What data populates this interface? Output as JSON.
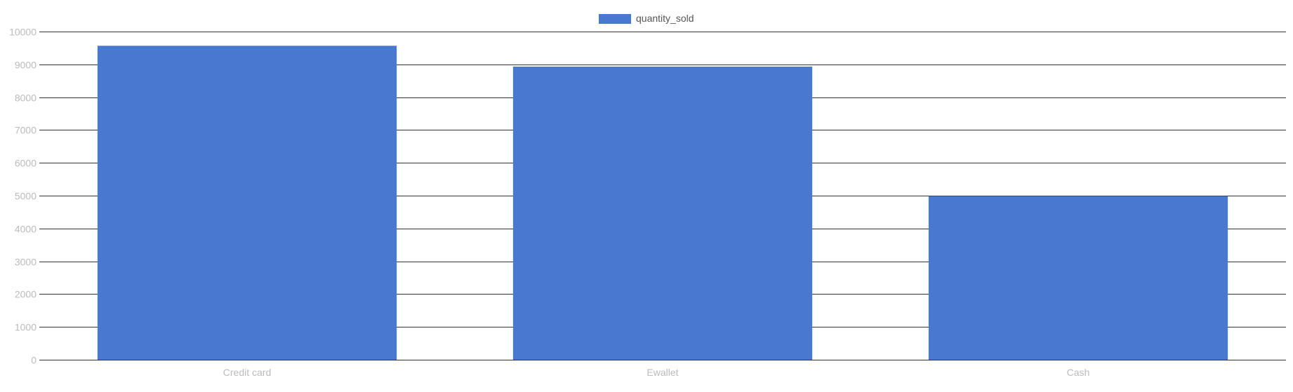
{
  "chart_data": {
    "type": "bar",
    "categories": [
      "Credit card",
      "Ewallet",
      "Cash"
    ],
    "series": [
      {
        "name": "quantity_sold",
        "values": [
          9567,
          8932,
          4984
        ],
        "color": "#4878d0"
      }
    ],
    "ylim": [
      0,
      10000
    ],
    "yticks": [
      0,
      1000,
      2000,
      3000,
      4000,
      5000,
      6000,
      7000,
      8000,
      9000,
      10000
    ],
    "xlabel": "",
    "ylabel": "",
    "grid": true,
    "legend": "top-center"
  }
}
